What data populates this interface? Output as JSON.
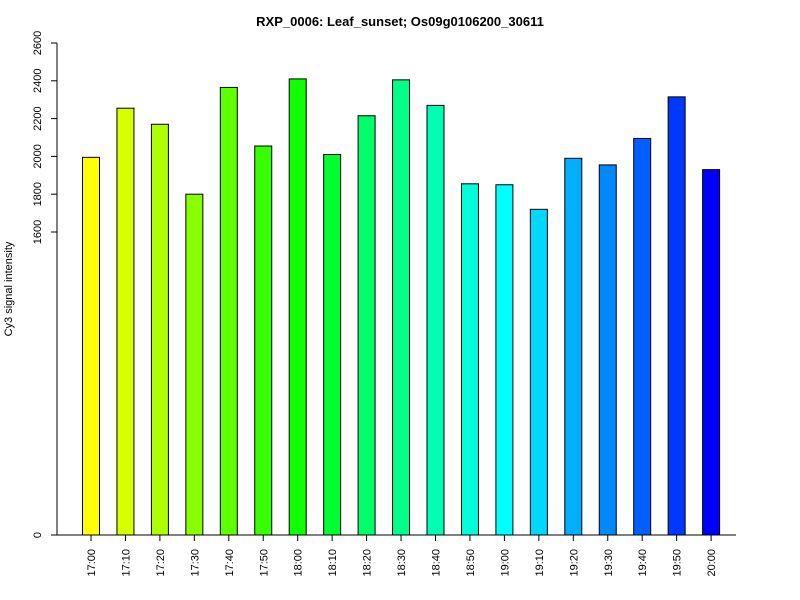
{
  "chart_data": {
    "type": "bar",
    "title": "RXP_0006: Leaf_sunset; Os09g0106200_30611",
    "xlabel": "",
    "ylabel": "Cy3 signal intensity",
    "categories": [
      "17:00",
      "17:10",
      "17:20",
      "17:30",
      "17:40",
      "17:50",
      "18:00",
      "18:10",
      "18:20",
      "18:30",
      "18:40",
      "18:50",
      "19:00",
      "19:10",
      "19:20",
      "19:30",
      "19:40",
      "19:50",
      "20:00"
    ],
    "values": [
      1995,
      2255,
      2170,
      1800,
      2365,
      2055,
      2410,
      2010,
      2215,
      2405,
      2270,
      1855,
      1850,
      1720,
      1990,
      1955,
      2095,
      2315,
      1930
    ],
    "colors": [
      "#FFFF00",
      "#D8FF00",
      "#B0FF00",
      "#88FF00",
      "#60FF00",
      "#38FF00",
      "#10FF00",
      "#00FF30",
      "#00FF68",
      "#00FF88",
      "#00FFB0",
      "#00FFD8",
      "#00FFFF",
      "#00D8FF",
      "#00B0FF",
      "#0088FF",
      "#0060FF",
      "#0038FF",
      "#0000FF"
    ],
    "yticks": [
      0,
      1600,
      1800,
      2000,
      2200,
      2400,
      2600
    ],
    "ylim": [
      0,
      2600
    ],
    "y_scale": "broken",
    "grid": false
  }
}
